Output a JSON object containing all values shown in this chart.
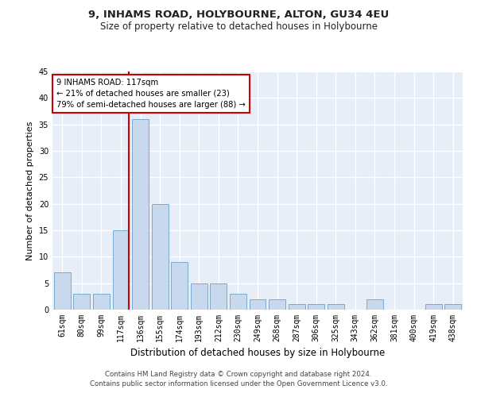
{
  "title": "9, INHAMS ROAD, HOLYBOURNE, ALTON, GU34 4EU",
  "subtitle": "Size of property relative to detached houses in Holybourne",
  "xlabel": "Distribution of detached houses by size in Holybourne",
  "ylabel": "Number of detached properties",
  "categories": [
    "61sqm",
    "80sqm",
    "99sqm",
    "117sqm",
    "136sqm",
    "155sqm",
    "174sqm",
    "193sqm",
    "212sqm",
    "230sqm",
    "249sqm",
    "268sqm",
    "287sqm",
    "306sqm",
    "325sqm",
    "343sqm",
    "362sqm",
    "381sqm",
    "400sqm",
    "419sqm",
    "438sqm"
  ],
  "values": [
    7,
    3,
    3,
    15,
    36,
    20,
    9,
    5,
    5,
    3,
    2,
    2,
    1,
    1,
    1,
    0,
    2,
    0,
    0,
    1,
    1
  ],
  "bar_color": "#c8d8ed",
  "bar_edge_color": "#7aaacf",
  "vline_index": 3,
  "vline_color": "#cc0000",
  "ylim": [
    0,
    45
  ],
  "yticks": [
    0,
    5,
    10,
    15,
    20,
    25,
    30,
    35,
    40,
    45
  ],
  "annotation_title": "9 INHAMS ROAD: 117sqm",
  "annotation_line1": "← 21% of detached houses are smaller (23)",
  "annotation_line2": "79% of semi-detached houses are larger (88) →",
  "annotation_box_color": "#ffffff",
  "annotation_box_edge_color": "#cc0000",
  "footer1": "Contains HM Land Registry data © Crown copyright and database right 2024.",
  "footer2": "Contains public sector information licensed under the Open Government Licence v3.0.",
  "background_color": "#e8eef8",
  "title_fontsize": 9.5,
  "subtitle_fontsize": 8.5,
  "ylabel_fontsize": 8,
  "xlabel_fontsize": 8.5,
  "tick_fontsize": 7
}
